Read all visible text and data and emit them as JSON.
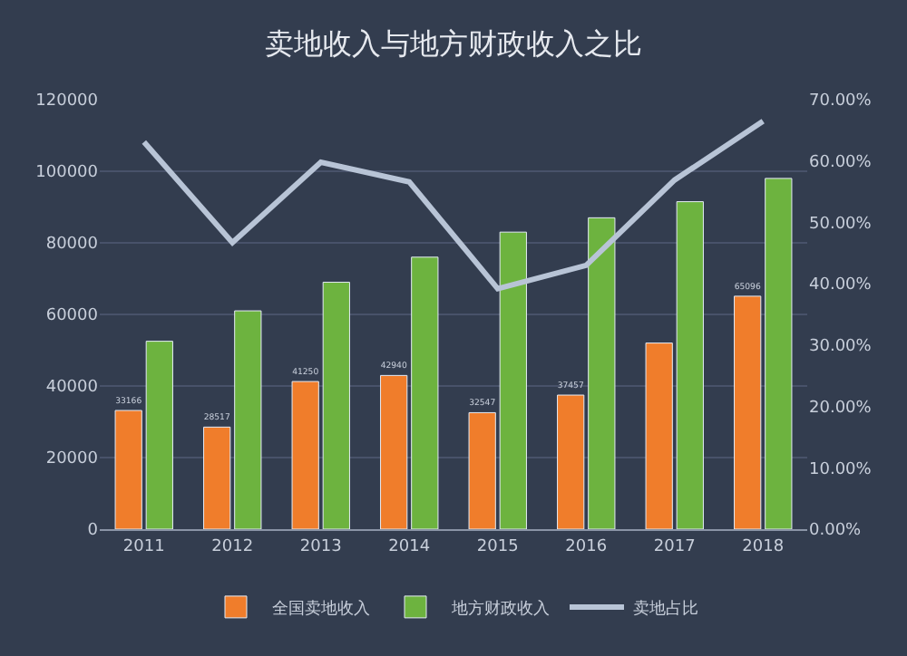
{
  "chart_data": {
    "type": "bar",
    "title": "卖地收入与地方财政收入之比",
    "categories": [
      "2011",
      "2012",
      "2013",
      "2014",
      "2015",
      "2016",
      "2017",
      "2018"
    ],
    "series": [
      {
        "name": "全国卖地收入",
        "color": "#f07d2b",
        "values": [
          33166,
          28517,
          41250,
          42940,
          32547,
          37457,
          52000,
          65096
        ],
        "value_labels": [
          "33166",
          "28517",
          "41250",
          "42940",
          "32547",
          "37457",
          null,
          "65096"
        ]
      },
      {
        "name": "地方财政收入",
        "color": "#6db33f",
        "values": [
          52500,
          61000,
          69000,
          76000,
          83000,
          87000,
          91500,
          98000
        ]
      },
      {
        "name": "卖地占比",
        "type": "line",
        "axis": "y2",
        "color": "#b8c4d6",
        "values": [
          63.1,
          46.7,
          59.8,
          56.6,
          39.2,
          43.0,
          56.9,
          66.5
        ]
      }
    ],
    "ylim": [
      0,
      120000
    ],
    "yticks": [
      0,
      20000,
      40000,
      60000,
      80000,
      100000,
      120000
    ],
    "y2lim": [
      0,
      70
    ],
    "y2ticks": [
      {
        "value": 0,
        "label": "0.00%"
      },
      {
        "value": 10,
        "label": "10.00%"
      },
      {
        "value": 20,
        "label": "20.00%"
      },
      {
        "value": 30,
        "label": "30.00%"
      },
      {
        "value": 40,
        "label": "40.00%"
      },
      {
        "value": 50,
        "label": "50.00%"
      },
      {
        "value": 60,
        "label": "60.00%"
      },
      {
        "value": 70,
        "label": "70.00%"
      }
    ],
    "grid": "y",
    "legend": "bottom",
    "marker": "none"
  }
}
